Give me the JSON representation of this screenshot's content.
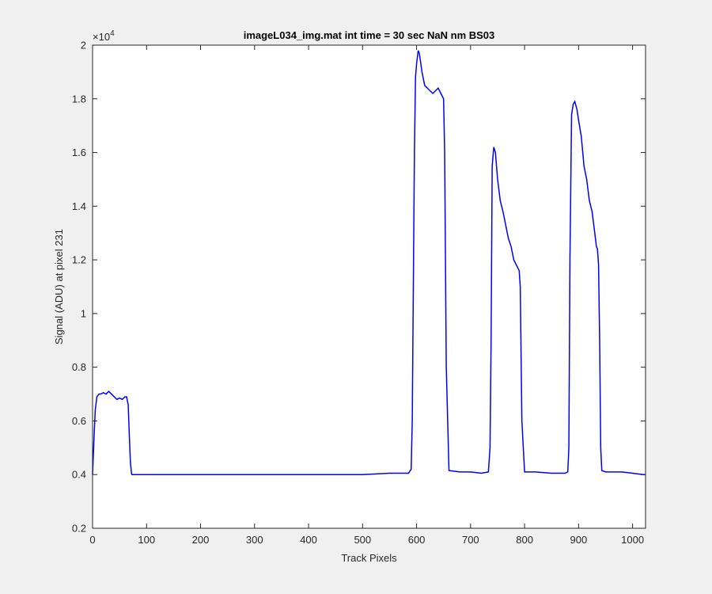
{
  "chart_data": {
    "type": "line",
    "title": "imageL034_img.mat int time = 30 sec  NaN nm BS03",
    "xlabel": "Track Pixels",
    "ylabel": "Signal (ADU) at pixel 231",
    "exponent_label": "×10",
    "exponent_power": "4",
    "xlim": [
      0,
      1024
    ],
    "ylim": [
      0.2,
      2.0
    ],
    "y_scale_factor": 10000,
    "x_ticks": [
      0,
      100,
      200,
      300,
      400,
      500,
      600,
      700,
      800,
      900,
      1000
    ],
    "x_tick_labels": [
      "0",
      "100",
      "200",
      "300",
      "400",
      "500",
      "600",
      "700",
      "800",
      "900",
      "1000"
    ],
    "y_ticks": [
      0.2,
      0.4,
      0.6,
      0.8,
      1.0,
      1.2,
      1.4,
      1.6,
      1.8,
      2.0
    ],
    "y_tick_labels": [
      "0.2",
      "0.4",
      "0.6",
      "0.8",
      "1",
      "1.2",
      "1.4",
      "1.6",
      "1.8",
      "2"
    ],
    "grid": false,
    "line_color": "#0000ff",
    "series": [
      {
        "x": [
          0,
          3,
          5,
          8,
          12,
          15,
          20,
          25,
          30,
          35,
          40,
          45,
          50,
          55,
          60,
          63,
          66,
          68,
          70,
          72,
          73,
          75,
          100,
          150,
          200,
          250,
          300,
          350,
          400,
          450,
          500,
          550,
          585,
          590,
          592,
          594,
          596,
          598,
          600,
          603,
          605,
          608,
          610,
          615,
          620,
          625,
          630,
          635,
          640,
          645,
          650,
          652,
          655,
          660,
          680,
          700,
          720,
          733,
          736,
          738,
          740,
          743,
          746,
          748,
          750,
          755,
          760,
          765,
          770,
          775,
          780,
          785,
          790,
          792,
          795,
          800,
          820,
          850,
          875,
          880,
          882,
          884,
          887,
          890,
          893,
          897,
          900,
          905,
          910,
          915,
          920,
          925,
          930,
          933,
          935,
          937,
          939,
          941,
          943,
          950,
          980,
          1000,
          1020,
          1024
        ],
        "y": [
          0.4,
          0.55,
          0.64,
          0.69,
          0.7,
          0.7,
          0.705,
          0.7,
          0.71,
          0.7,
          0.69,
          0.68,
          0.685,
          0.68,
          0.69,
          0.69,
          0.66,
          0.55,
          0.45,
          0.405,
          0.4,
          0.4,
          0.4,
          0.4,
          0.4,
          0.4,
          0.4,
          0.4,
          0.4,
          0.4,
          0.4,
          0.405,
          0.405,
          0.42,
          0.6,
          1.1,
          1.6,
          1.88,
          1.93,
          1.98,
          1.97,
          1.93,
          1.9,
          1.85,
          1.84,
          1.83,
          1.82,
          1.83,
          1.84,
          1.82,
          1.8,
          1.6,
          0.8,
          0.415,
          0.41,
          0.41,
          0.405,
          0.41,
          0.5,
          0.9,
          1.55,
          1.62,
          1.6,
          1.55,
          1.5,
          1.42,
          1.38,
          1.33,
          1.28,
          1.25,
          1.2,
          1.18,
          1.16,
          1.1,
          0.6,
          0.41,
          0.41,
          0.405,
          0.405,
          0.41,
          0.5,
          1.2,
          1.74,
          1.78,
          1.79,
          1.76,
          1.72,
          1.66,
          1.55,
          1.5,
          1.42,
          1.38,
          1.3,
          1.25,
          1.24,
          1.18,
          0.9,
          0.5,
          0.415,
          0.41,
          0.41,
          0.405,
          0.4,
          0.4
        ]
      }
    ]
  }
}
